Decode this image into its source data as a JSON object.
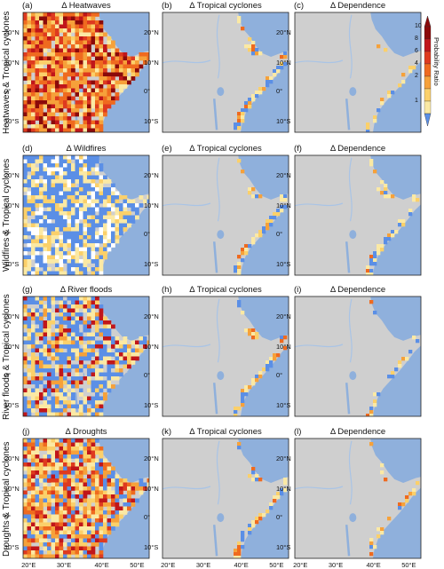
{
  "rows": [
    {
      "row_label": "Heatwaves & Tropical cyclones",
      "panels": [
        {
          "letter": "(a)",
          "title": "Δ Heatwaves",
          "coverage": "full",
          "palette": "hot"
        },
        {
          "letter": "(b)",
          "title": "Δ Tropical cyclones",
          "coverage": "coastal",
          "palette": "mild"
        },
        {
          "letter": "(c)",
          "title": "Δ Dependence",
          "coverage": "sparse",
          "palette": "mild"
        }
      ]
    },
    {
      "row_label": "Wildfires & Tropical cyclones",
      "panels": [
        {
          "letter": "(d)",
          "title": "Δ Wildfires",
          "coverage": "full",
          "palette": "cool"
        },
        {
          "letter": "(e)",
          "title": "Δ Tropical cyclones",
          "coverage": "coastal",
          "palette": "mild"
        },
        {
          "letter": "(f)",
          "title": "Δ Dependence",
          "coverage": "coastal",
          "palette": "mild"
        }
      ]
    },
    {
      "row_label": "River floods & Tropical cyclones",
      "panels": [
        {
          "letter": "(g)",
          "title": "Δ River floods",
          "coverage": "full",
          "palette": "mixed"
        },
        {
          "letter": "(h)",
          "title": "Δ Tropical cyclones",
          "coverage": "coastal",
          "palette": "mild"
        },
        {
          "letter": "(i)",
          "title": "Δ Dependence",
          "coverage": "sparse",
          "palette": "mild"
        }
      ]
    },
    {
      "row_label": "Droughts & Tropical cyclones",
      "panels": [
        {
          "letter": "(j)",
          "title": "Δ Droughts",
          "coverage": "full",
          "palette": "warm"
        },
        {
          "letter": "(k)",
          "title": "Δ Tropical cyclones",
          "coverage": "coastal",
          "palette": "mild"
        },
        {
          "letter": "(l)",
          "title": "Δ Dependence",
          "coverage": "sparse",
          "palette": "mild"
        }
      ]
    }
  ],
  "lat_ticks": [
    "20°N",
    "10°N",
    "0°",
    "10°S"
  ],
  "lon_ticks": [
    "20°E",
    "30°E",
    "40°E",
    "50°E"
  ],
  "colorbar": {
    "label": "Probability Ratio",
    "ticks": [
      "10",
      "8",
      "6",
      "4",
      "2",
      "1"
    ],
    "colors": [
      "#8b0a0a",
      "#c0161a",
      "#de3a1f",
      "#ef6a1f",
      "#f6a13a",
      "#fbd06a",
      "#fbe9a4"
    ],
    "below_color": "#5b8fe6"
  },
  "map_colors": {
    "ocean": "#8fb0dc",
    "land": "#cfcfcf",
    "river": "#a9c4e6"
  }
}
